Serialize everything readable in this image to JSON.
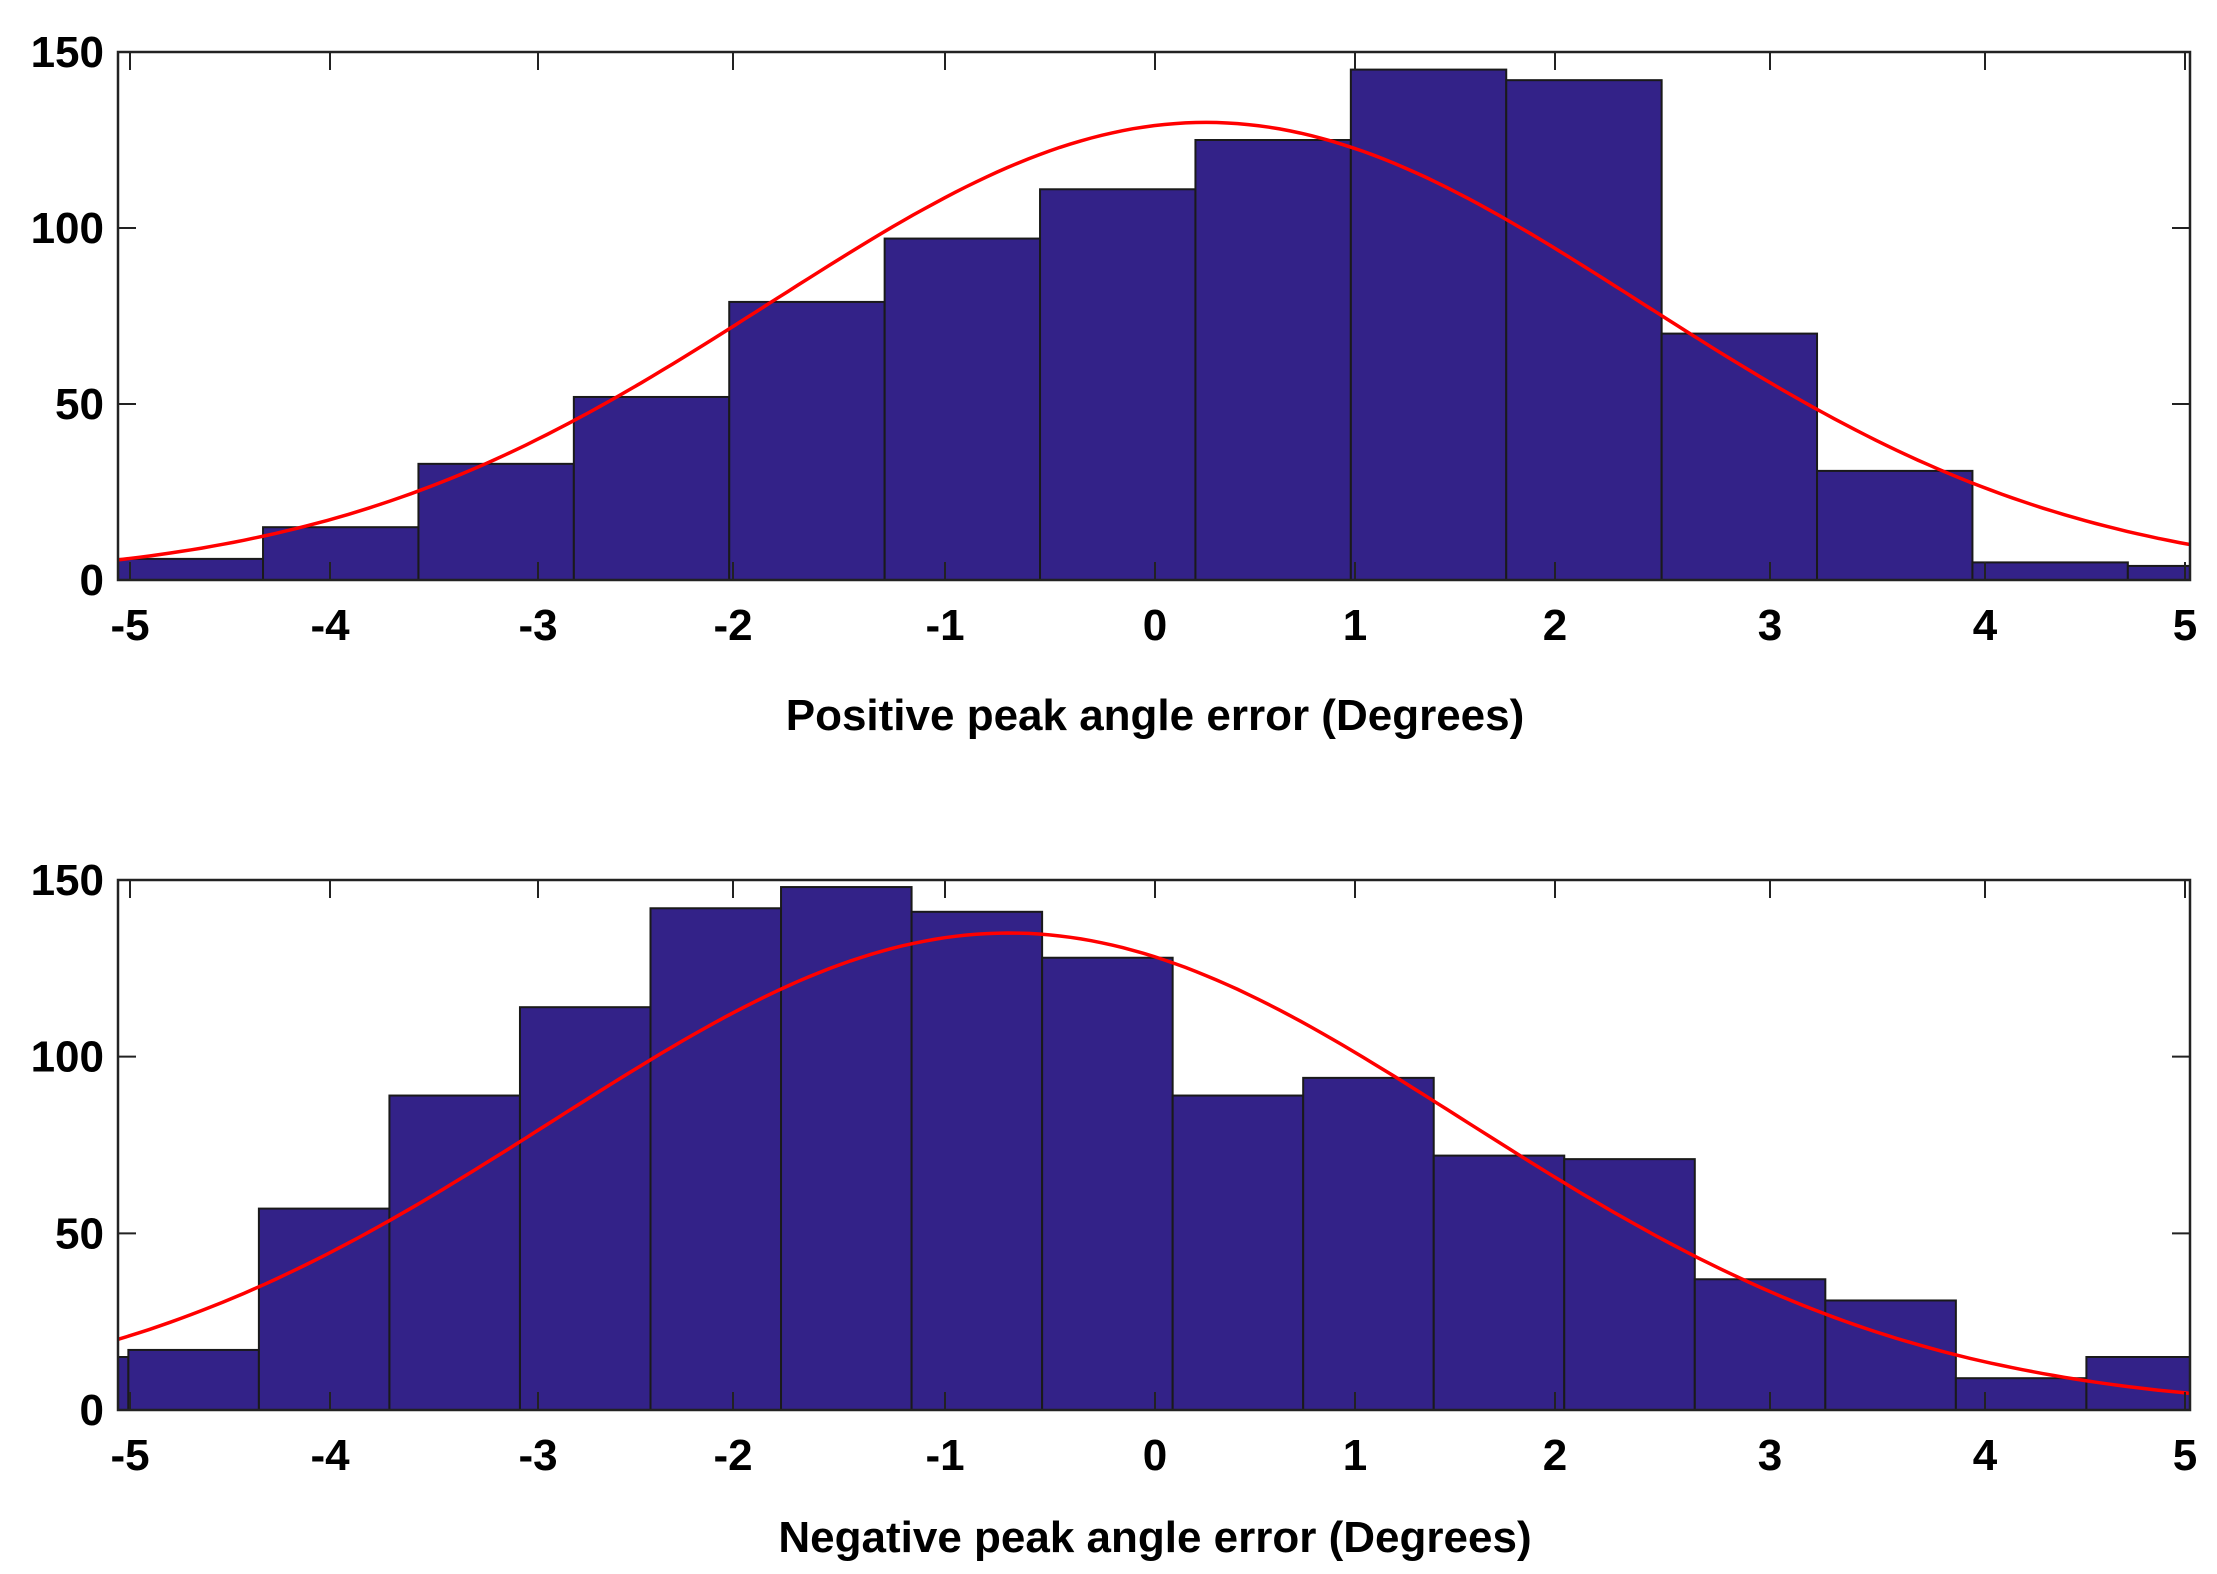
{
  "colors": {
    "bar_fill": "#332288",
    "bar_edge": "#1a1a1a",
    "fit_line": "#ff0000",
    "axes": "#222222"
  },
  "chart_data": [
    {
      "type": "bar",
      "subtype": "histogram-with-normal-fit",
      "title": "",
      "xlabel": "Positive peak angle error (Degrees)",
      "ylabel": "",
      "xlim": [
        -5,
        5
      ],
      "ylim": [
        0,
        150
      ],
      "xticks": [
        "-5",
        "-4",
        "-3",
        "-2",
        "-1",
        "0",
        "1",
        "2",
        "3",
        "4",
        "5"
      ],
      "yticks": [
        "0",
        "50",
        "100",
        "150"
      ],
      "grid": false,
      "bins": [
        {
          "x0": -5.05,
          "x1": -4.3,
          "value": 6
        },
        {
          "x0": -4.3,
          "x1": -3.55,
          "value": 15
        },
        {
          "x0": -3.55,
          "x1": -2.8,
          "value": 33
        },
        {
          "x0": -2.8,
          "x1": -2.05,
          "value": 52
        },
        {
          "x0": -2.05,
          "x1": -1.3,
          "value": 79
        },
        {
          "x0": -1.3,
          "x1": -0.55,
          "value": 97
        },
        {
          "x0": -0.55,
          "x1": 0.2,
          "value": 111
        },
        {
          "x0": 0.2,
          "x1": 0.95,
          "value": 125
        },
        {
          "x0": 0.95,
          "x1": 1.7,
          "value": 145
        },
        {
          "x0": 1.7,
          "x1": 2.45,
          "value": 142
        },
        {
          "x0": 2.45,
          "x1": 3.2,
          "value": 70
        },
        {
          "x0": 3.2,
          "x1": 3.95,
          "value": 31
        },
        {
          "x0": 3.95,
          "x1": 4.7,
          "value": 5
        },
        {
          "x0": 4.7,
          "x1": 5.45,
          "value": 4
        }
      ],
      "fit": {
        "type": "normal",
        "mean": 0.25,
        "sigma": 2.1,
        "peak": 130
      }
    },
    {
      "type": "bar",
      "subtype": "histogram-with-normal-fit",
      "title": "",
      "xlabel": "Negative peak angle error (Degrees)",
      "ylabel": "",
      "xlim": [
        -5,
        5
      ],
      "ylim": [
        0,
        150
      ],
      "xticks": [
        "-5",
        "-4",
        "-3",
        "-2",
        "-1",
        "0",
        "1",
        "2",
        "3",
        "4",
        "5"
      ],
      "yticks": [
        "0",
        "50",
        "100",
        "150"
      ],
      "grid": false,
      "bins": [
        {
          "x0": -5.3,
          "x1": -4.95,
          "value": 15
        },
        {
          "x0": -4.95,
          "x1": -4.32,
          "value": 17
        },
        {
          "x0": -4.32,
          "x1": -3.69,
          "value": 57
        },
        {
          "x0": -3.69,
          "x1": -3.06,
          "value": 89
        },
        {
          "x0": -3.06,
          "x1": -2.43,
          "value": 114
        },
        {
          "x0": -2.43,
          "x1": -1.8,
          "value": 142
        },
        {
          "x0": -1.8,
          "x1": -1.17,
          "value": 148
        },
        {
          "x0": -1.17,
          "x1": -0.54,
          "value": 141
        },
        {
          "x0": -0.54,
          "x1": 0.09,
          "value": 128
        },
        {
          "x0": 0.09,
          "x1": 0.72,
          "value": 89
        },
        {
          "x0": 0.72,
          "x1": 1.35,
          "value": 94
        },
        {
          "x0": 1.35,
          "x1": 1.98,
          "value": 72
        },
        {
          "x0": 1.98,
          "x1": 2.61,
          "value": 71
        },
        {
          "x0": 2.61,
          "x1": 3.24,
          "value": 37
        },
        {
          "x0": 3.24,
          "x1": 3.87,
          "value": 31
        },
        {
          "x0": 3.87,
          "x1": 4.5,
          "value": 9
        },
        {
          "x0": 4.5,
          "x1": 5.13,
          "value": 15
        }
      ],
      "fit": {
        "type": "normal",
        "mean": -0.7,
        "sigma": 2.2,
        "peak": 135
      }
    }
  ]
}
